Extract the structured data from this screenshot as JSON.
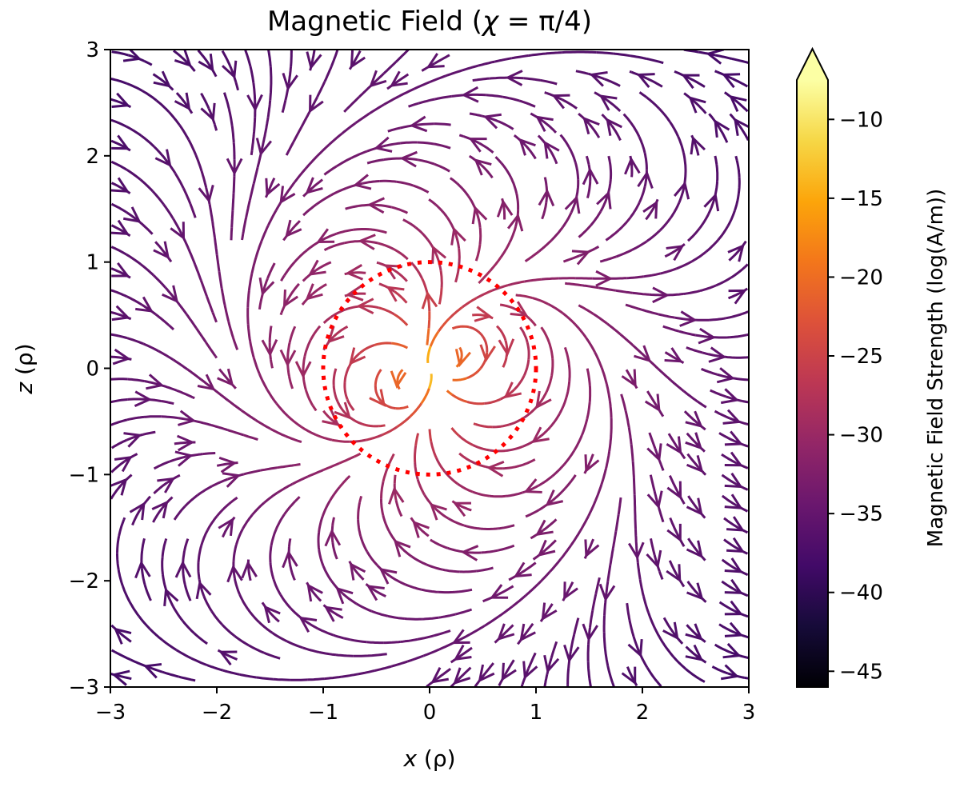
{
  "chart_data": {
    "type": "streamplot",
    "title": "Magnetic Field (χ = π/4)",
    "title_parts": {
      "prefix": "Magnetic Field (",
      "chi": "χ",
      "eq": " = π/4)"
    },
    "xlabel": {
      "var": "x",
      "unit": " (ρ)"
    },
    "ylabel": {
      "var": "z",
      "unit": " (ρ)"
    },
    "xlim": [
      -3,
      3
    ],
    "ylim": [
      -3,
      3
    ],
    "xticks": [
      -3,
      -2,
      -1,
      0,
      1,
      2,
      3
    ],
    "yticks": [
      -3,
      -2,
      -1,
      0,
      1,
      2,
      3
    ],
    "xtick_labels": [
      "−3",
      "−2",
      "−1",
      "0",
      "1",
      "2",
      "3"
    ],
    "ytick_labels": [
      "−3",
      "−2",
      "−1",
      "0",
      "1",
      "2",
      "3"
    ],
    "field": "dipole tilted by χ = π/4, streamlines with arrows, colored by log field strength",
    "dipole_tilt": "π/4",
    "circle": {
      "center": [
        0,
        0
      ],
      "radius": 1,
      "color": "#ff0000",
      "style": "dotted"
    },
    "colorbar": {
      "label": "Magnetic Field Strength (log(A/m))",
      "colormap": "inferno",
      "range": [
        -46,
        -7.5
      ],
      "extend": "max",
      "ticks": [
        -10,
        -15,
        -20,
        -25,
        -30,
        -35,
        -40,
        -45
      ],
      "tick_labels": [
        "−10",
        "−15",
        "−20",
        "−25",
        "−30",
        "−35",
        "−40",
        "−45"
      ]
    },
    "grid": false
  }
}
